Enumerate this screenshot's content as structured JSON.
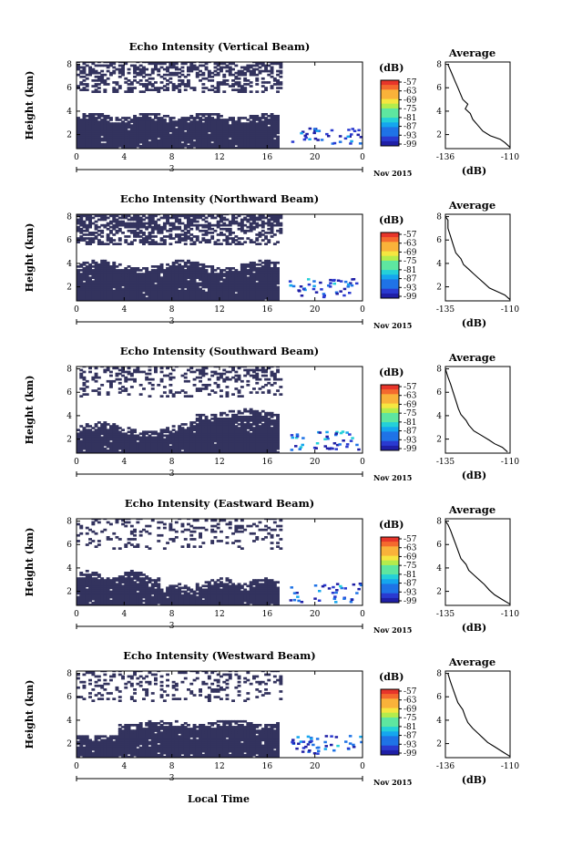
{
  "colors": {
    "echo_fill": "#33335e",
    "colormap": [
      "#1f1fa6",
      "#2a3ad0",
      "#1f73e6",
      "#15a6ee",
      "#24d0d8",
      "#5ee6a0",
      "#b4ec4c",
      "#f5e640",
      "#f9b23a",
      "#f46a2e",
      "#e7352a"
    ]
  },
  "common": {
    "x_ticks": [
      "0",
      "4",
      "8",
      "12",
      "16",
      "20",
      "0"
    ],
    "y_ticks": [
      "2",
      "4",
      "6",
      "8"
    ],
    "ylabel": "Height (km)",
    "date_marker": "3",
    "date_label": "Nov 2015",
    "cbar_label": "(dB)",
    "cbar_ticks": [
      "-57",
      "-63",
      "-69",
      "-75",
      "-81",
      "-87",
      "-93",
      "-99"
    ],
    "avg_title": "Average",
    "avg_xlabel": "(dB)",
    "avg_y_ticks": [
      "2",
      "4",
      "6",
      "8"
    ],
    "xlabel": "Local Time"
  },
  "chart_data": [
    {
      "type": "heatmap",
      "title": "Echo Intensity (Vertical Beam)",
      "ylabel": "Height (km)",
      "x_range_hours": [
        0,
        24
      ],
      "y_range_km": [
        0.8,
        8.2
      ],
      "colorbar_range_db": [
        -99,
        -57
      ],
      "avg_xticks": [
        "-136",
        "-110"
      ],
      "avg_xlim": [
        -136,
        -110
      ],
      "avg_profile": [
        [
          -110,
          0.9
        ],
        [
          -112,
          1.3
        ],
        [
          -114,
          1.6
        ],
        [
          -118,
          1.9
        ],
        [
          -121,
          2.3
        ],
        [
          -123,
          2.8
        ],
        [
          -125,
          3.3
        ],
        [
          -126,
          3.8
        ],
        [
          -128,
          4.2
        ],
        [
          -127,
          4.6
        ],
        [
          -129,
          5.0
        ],
        [
          -130,
          5.5
        ],
        [
          -131,
          6.0
        ],
        [
          -132,
          6.5
        ],
        [
          -133,
          7.0
        ],
        [
          -134,
          7.5
        ],
        [
          -135,
          8.0
        ]
      ]
    },
    {
      "type": "heatmap",
      "title": "Echo Intensity (Northward Beam)",
      "ylabel": "Height (km)",
      "x_range_hours": [
        0,
        24
      ],
      "y_range_km": [
        0.8,
        8.2
      ],
      "colorbar_range_db": [
        -99,
        -57
      ],
      "avg_xticks": [
        "-135",
        "-110"
      ],
      "avg_xlim": [
        -135,
        -110
      ],
      "avg_profile": [
        [
          -110,
          0.9
        ],
        [
          -112,
          1.3
        ],
        [
          -115,
          1.6
        ],
        [
          -118,
          1.9
        ],
        [
          -120,
          2.3
        ],
        [
          -122,
          2.7
        ],
        [
          -124,
          3.1
        ],
        [
          -126,
          3.5
        ],
        [
          -128,
          3.9
        ],
        [
          -129,
          4.4
        ],
        [
          -131,
          4.9
        ],
        [
          -132,
          5.6
        ],
        [
          -133,
          6.3
        ],
        [
          -134,
          7.0
        ],
        [
          -134,
          7.7
        ],
        [
          -135,
          8.0
        ]
      ]
    },
    {
      "type": "heatmap",
      "title": "Echo Intensity (Southward Beam)",
      "ylabel": "Height (km)",
      "x_range_hours": [
        0,
        24
      ],
      "y_range_km": [
        0.8,
        8.2
      ],
      "colorbar_range_db": [
        -99,
        -57
      ],
      "avg_xticks": [
        "-135",
        "-110"
      ],
      "avg_xlim": [
        -135,
        -110
      ],
      "avg_profile": [
        [
          -111,
          0.9
        ],
        [
          -113,
          1.3
        ],
        [
          -116,
          1.6
        ],
        [
          -118,
          1.9
        ],
        [
          -121,
          2.3
        ],
        [
          -124,
          2.7
        ],
        [
          -126,
          3.2
        ],
        [
          -127,
          3.6
        ],
        [
          -129,
          4.1
        ],
        [
          -130,
          4.6
        ],
        [
          -131,
          5.3
        ],
        [
          -132,
          6.0
        ],
        [
          -133,
          6.7
        ],
        [
          -134,
          7.3
        ],
        [
          -135,
          8.0
        ]
      ]
    },
    {
      "type": "heatmap",
      "title": "Echo Intensity (Eastward Beam)",
      "ylabel": "Height (km)",
      "x_range_hours": [
        0,
        24
      ],
      "y_range_km": [
        0.8,
        8.2
      ],
      "colorbar_range_db": [
        -99,
        -57
      ],
      "avg_xticks": [
        "-135",
        "-110"
      ],
      "avg_xlim": [
        -135,
        -110
      ],
      "avg_profile": [
        [
          -110,
          0.9
        ],
        [
          -113,
          1.3
        ],
        [
          -116,
          1.7
        ],
        [
          -118,
          2.1
        ],
        [
          -120,
          2.6
        ],
        [
          -122,
          3.0
        ],
        [
          -124,
          3.4
        ],
        [
          -126,
          3.8
        ],
        [
          -127,
          4.3
        ],
        [
          -129,
          4.8
        ],
        [
          -130,
          5.4
        ],
        [
          -131,
          6.0
        ],
        [
          -132,
          6.6
        ],
        [
          -133,
          7.2
        ],
        [
          -134,
          7.7
        ],
        [
          -135,
          8.0
        ]
      ]
    },
    {
      "type": "heatmap",
      "title": "Echo Intensity (Westward Beam)",
      "ylabel": "Height (km)",
      "x_range_hours": [
        0,
        24
      ],
      "y_range_km": [
        0.8,
        8.2
      ],
      "colorbar_range_db": [
        -99,
        -57
      ],
      "avg_xticks": [
        "-136",
        "-110"
      ],
      "avg_xlim": [
        -136,
        -110
      ],
      "avg_profile": [
        [
          -110,
          0.9
        ],
        [
          -113,
          1.3
        ],
        [
          -116,
          1.7
        ],
        [
          -119,
          2.1
        ],
        [
          -121,
          2.5
        ],
        [
          -123,
          2.9
        ],
        [
          -125,
          3.3
        ],
        [
          -127,
          3.8
        ],
        [
          -128,
          4.3
        ],
        [
          -129,
          4.9
        ],
        [
          -131,
          5.5
        ],
        [
          -132,
          6.1
        ],
        [
          -133,
          6.7
        ],
        [
          -134,
          7.3
        ],
        [
          -135,
          8.0
        ]
      ]
    }
  ]
}
